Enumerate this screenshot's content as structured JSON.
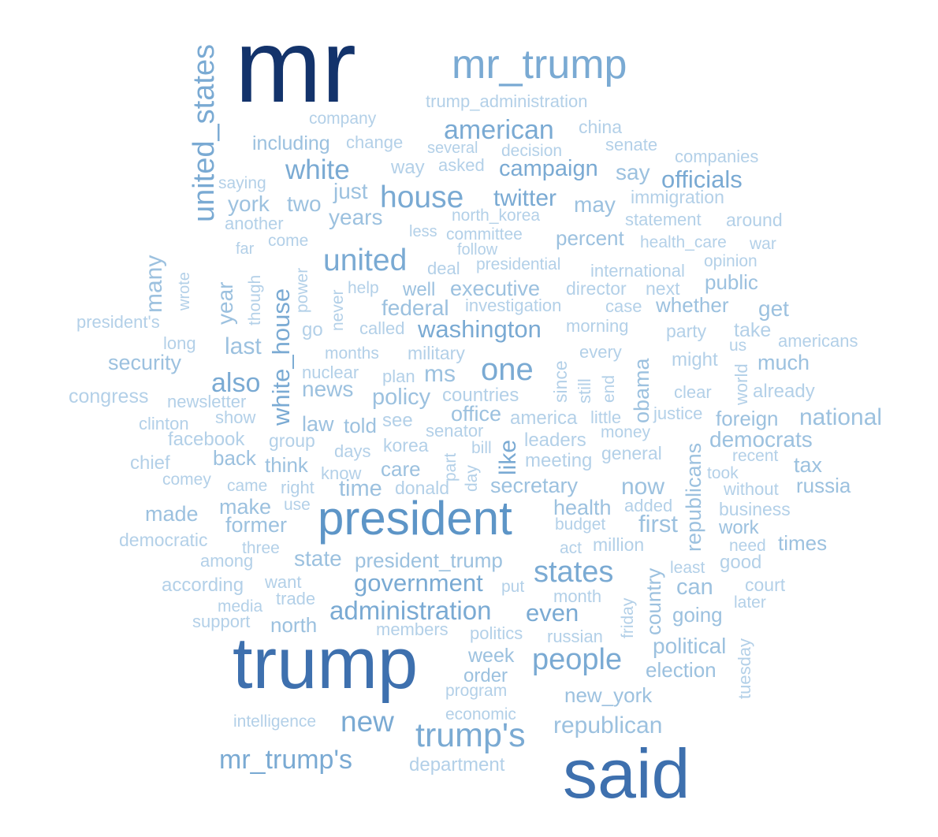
{
  "palette": {
    "darkest": "#13336b",
    "dark": "#3e70ae",
    "mid": "#5d95c7",
    "soft": "#7aaad3",
    "light": "#9cc1df",
    "lightest": "#b3d0e8"
  },
  "words": [
    {
      "text": "mr",
      "tone": "darkest"
    },
    {
      "text": "mr_trump",
      "tone": "soft"
    },
    {
      "text": "trump",
      "tone": "dark"
    },
    {
      "text": "said",
      "tone": "dark"
    },
    {
      "text": "president",
      "tone": "mid"
    },
    {
      "text": "trump_administration",
      "tone": "lightest"
    },
    {
      "text": "company",
      "tone": "lightest"
    },
    {
      "text": "american",
      "tone": "soft"
    },
    {
      "text": "china",
      "tone": "lightest"
    },
    {
      "text": "including",
      "tone": "light"
    },
    {
      "text": "change",
      "tone": "lightest"
    },
    {
      "text": "several",
      "tone": "lightest"
    },
    {
      "text": "decision",
      "tone": "lightest"
    },
    {
      "text": "senate",
      "tone": "lightest"
    },
    {
      "text": "companies",
      "tone": "lightest"
    },
    {
      "text": "white",
      "tone": "soft"
    },
    {
      "text": "way",
      "tone": "lightest"
    },
    {
      "text": "asked",
      "tone": "lightest"
    },
    {
      "text": "campaign",
      "tone": "soft"
    },
    {
      "text": "say",
      "tone": "light"
    },
    {
      "text": "officials",
      "tone": "soft"
    },
    {
      "text": "saying",
      "tone": "lightest"
    },
    {
      "text": "just",
      "tone": "light"
    },
    {
      "text": "house",
      "tone": "soft"
    },
    {
      "text": "twitter",
      "tone": "soft"
    },
    {
      "text": "immigration",
      "tone": "lightest"
    },
    {
      "text": "york",
      "tone": "light"
    },
    {
      "text": "two",
      "tone": "light"
    },
    {
      "text": "years",
      "tone": "light"
    },
    {
      "text": "may",
      "tone": "light"
    },
    {
      "text": "north_korea",
      "tone": "lightest"
    },
    {
      "text": "statement",
      "tone": "lightest"
    },
    {
      "text": "around",
      "tone": "lightest"
    },
    {
      "text": "another",
      "tone": "lightest"
    },
    {
      "text": "less",
      "tone": "lightest"
    },
    {
      "text": "committee",
      "tone": "lightest"
    },
    {
      "text": "percent",
      "tone": "light"
    },
    {
      "text": "health_care",
      "tone": "lightest"
    },
    {
      "text": "war",
      "tone": "lightest"
    },
    {
      "text": "far",
      "tone": "lightest"
    },
    {
      "text": "come",
      "tone": "lightest"
    },
    {
      "text": "follow",
      "tone": "lightest"
    },
    {
      "text": "opinion",
      "tone": "lightest"
    },
    {
      "text": "united",
      "tone": "soft"
    },
    {
      "text": "deal",
      "tone": "lightest"
    },
    {
      "text": "presidential",
      "tone": "lightest"
    },
    {
      "text": "international",
      "tone": "lightest"
    },
    {
      "text": "public",
      "tone": "light"
    },
    {
      "text": "help",
      "tone": "lightest"
    },
    {
      "text": "well",
      "tone": "light"
    },
    {
      "text": "executive",
      "tone": "light"
    },
    {
      "text": "director",
      "tone": "lightest"
    },
    {
      "text": "next",
      "tone": "lightest"
    },
    {
      "text": "investigation",
      "tone": "lightest"
    },
    {
      "text": "case",
      "tone": "lightest"
    },
    {
      "text": "whether",
      "tone": "light"
    },
    {
      "text": "get",
      "tone": "light"
    },
    {
      "text": "federal",
      "tone": "light"
    },
    {
      "text": "president's",
      "tone": "lightest"
    },
    {
      "text": "go",
      "tone": "lightest"
    },
    {
      "text": "called",
      "tone": "lightest"
    },
    {
      "text": "washington",
      "tone": "soft"
    },
    {
      "text": "morning",
      "tone": "lightest"
    },
    {
      "text": "party",
      "tone": "lightest"
    },
    {
      "text": "take",
      "tone": "lightest"
    },
    {
      "text": "long",
      "tone": "lightest"
    },
    {
      "text": "last",
      "tone": "light"
    },
    {
      "text": "months",
      "tone": "lightest"
    },
    {
      "text": "military",
      "tone": "lightest"
    },
    {
      "text": "every",
      "tone": "lightest"
    },
    {
      "text": "us",
      "tone": "lightest"
    },
    {
      "text": "americans",
      "tone": "lightest"
    },
    {
      "text": "security",
      "tone": "light"
    },
    {
      "text": "nuclear",
      "tone": "lightest"
    },
    {
      "text": "one",
      "tone": "soft"
    },
    {
      "text": "might",
      "tone": "lightest"
    },
    {
      "text": "much",
      "tone": "light"
    },
    {
      "text": "also",
      "tone": "soft"
    },
    {
      "text": "news",
      "tone": "light"
    },
    {
      "text": "plan",
      "tone": "lightest"
    },
    {
      "text": "ms",
      "tone": "light"
    },
    {
      "text": "congress",
      "tone": "lightest"
    },
    {
      "text": "newsletter",
      "tone": "lightest"
    },
    {
      "text": "policy",
      "tone": "light"
    },
    {
      "text": "countries",
      "tone": "lightest"
    },
    {
      "text": "clear",
      "tone": "lightest"
    },
    {
      "text": "already",
      "tone": "lightest"
    },
    {
      "text": "show",
      "tone": "lightest"
    },
    {
      "text": "office",
      "tone": "light"
    },
    {
      "text": "america",
      "tone": "lightest"
    },
    {
      "text": "little",
      "tone": "lightest"
    },
    {
      "text": "justice",
      "tone": "lightest"
    },
    {
      "text": "foreign",
      "tone": "light"
    },
    {
      "text": "national",
      "tone": "light"
    },
    {
      "text": "clinton",
      "tone": "lightest"
    },
    {
      "text": "law",
      "tone": "light"
    },
    {
      "text": "told",
      "tone": "light"
    },
    {
      "text": "see",
      "tone": "lightest"
    },
    {
      "text": "senator",
      "tone": "lightest"
    },
    {
      "text": "money",
      "tone": "lightest"
    },
    {
      "text": "facebook",
      "tone": "lightest"
    },
    {
      "text": "group",
      "tone": "lightest"
    },
    {
      "text": "bill",
      "tone": "lightest"
    },
    {
      "text": "leaders",
      "tone": "lightest"
    },
    {
      "text": "democrats",
      "tone": "light"
    },
    {
      "text": "days",
      "tone": "lightest"
    },
    {
      "text": "korea",
      "tone": "lightest"
    },
    {
      "text": "general",
      "tone": "lightest"
    },
    {
      "text": "recent",
      "tone": "lightest"
    },
    {
      "text": "back",
      "tone": "light"
    },
    {
      "text": "think",
      "tone": "light"
    },
    {
      "text": "meeting",
      "tone": "lightest"
    },
    {
      "text": "tax",
      "tone": "light"
    },
    {
      "text": "chief",
      "tone": "lightest"
    },
    {
      "text": "know",
      "tone": "lightest"
    },
    {
      "text": "care",
      "tone": "light"
    },
    {
      "text": "took",
      "tone": "lightest"
    },
    {
      "text": "comey",
      "tone": "lightest"
    },
    {
      "text": "without",
      "tone": "lightest"
    },
    {
      "text": "russia",
      "tone": "light"
    },
    {
      "text": "came",
      "tone": "lightest"
    },
    {
      "text": "right",
      "tone": "lightest"
    },
    {
      "text": "time",
      "tone": "light"
    },
    {
      "text": "donald",
      "tone": "lightest"
    },
    {
      "text": "secretary",
      "tone": "light"
    },
    {
      "text": "now",
      "tone": "light"
    },
    {
      "text": "make",
      "tone": "light"
    },
    {
      "text": "use",
      "tone": "lightest"
    },
    {
      "text": "health",
      "tone": "light"
    },
    {
      "text": "added",
      "tone": "lightest"
    },
    {
      "text": "business",
      "tone": "lightest"
    },
    {
      "text": "made",
      "tone": "light"
    },
    {
      "text": "former",
      "tone": "light"
    },
    {
      "text": "first",
      "tone": "light"
    },
    {
      "text": "budget",
      "tone": "lightest"
    },
    {
      "text": "work",
      "tone": "light"
    },
    {
      "text": "democratic",
      "tone": "lightest"
    },
    {
      "text": "three",
      "tone": "lightest"
    },
    {
      "text": "act",
      "tone": "lightest"
    },
    {
      "text": "million",
      "tone": "lightest"
    },
    {
      "text": "need",
      "tone": "lightest"
    },
    {
      "text": "times",
      "tone": "light"
    },
    {
      "text": "among",
      "tone": "lightest"
    },
    {
      "text": "state",
      "tone": "light"
    },
    {
      "text": "president_trump",
      "tone": "light"
    },
    {
      "text": "least",
      "tone": "lightest"
    },
    {
      "text": "good",
      "tone": "lightest"
    },
    {
      "text": "states",
      "tone": "soft"
    },
    {
      "text": "according",
      "tone": "lightest"
    },
    {
      "text": "want",
      "tone": "lightest"
    },
    {
      "text": "government",
      "tone": "soft"
    },
    {
      "text": "put",
      "tone": "lightest"
    },
    {
      "text": "can",
      "tone": "light"
    },
    {
      "text": "court",
      "tone": "lightest"
    },
    {
      "text": "media",
      "tone": "lightest"
    },
    {
      "text": "trade",
      "tone": "lightest"
    },
    {
      "text": "month",
      "tone": "lightest"
    },
    {
      "text": "later",
      "tone": "lightest"
    },
    {
      "text": "administration",
      "tone": "soft"
    },
    {
      "text": "even",
      "tone": "soft"
    },
    {
      "text": "going",
      "tone": "light"
    },
    {
      "text": "support",
      "tone": "lightest"
    },
    {
      "text": "north",
      "tone": "light"
    },
    {
      "text": "members",
      "tone": "lightest"
    },
    {
      "text": "politics",
      "tone": "lightest"
    },
    {
      "text": "russian",
      "tone": "lightest"
    },
    {
      "text": "political",
      "tone": "light"
    },
    {
      "text": "week",
      "tone": "light"
    },
    {
      "text": "people",
      "tone": "soft"
    },
    {
      "text": "election",
      "tone": "light"
    },
    {
      "text": "order",
      "tone": "light"
    },
    {
      "text": "program",
      "tone": "lightest"
    },
    {
      "text": "new_york",
      "tone": "light"
    },
    {
      "text": "intelligence",
      "tone": "lightest"
    },
    {
      "text": "new",
      "tone": "soft"
    },
    {
      "text": "economic",
      "tone": "lightest"
    },
    {
      "text": "republican",
      "tone": "light"
    },
    {
      "text": "trump's",
      "tone": "soft"
    },
    {
      "text": "mr_trump's",
      "tone": "soft"
    },
    {
      "text": "department",
      "tone": "lightest"
    },
    {
      "text": "united_states",
      "tone": "soft"
    },
    {
      "text": "many",
      "tone": "light"
    },
    {
      "text": "wrote",
      "tone": "lightest"
    },
    {
      "text": "year",
      "tone": "light"
    },
    {
      "text": "though",
      "tone": "lightest"
    },
    {
      "text": "white_house",
      "tone": "soft"
    },
    {
      "text": "power",
      "tone": "lightest"
    },
    {
      "text": "never",
      "tone": "lightest"
    },
    {
      "text": "since",
      "tone": "lightest"
    },
    {
      "text": "still",
      "tone": "lightest"
    },
    {
      "text": "end",
      "tone": "lightest"
    },
    {
      "text": "obama",
      "tone": "light"
    },
    {
      "text": "world",
      "tone": "lightest"
    },
    {
      "text": "like",
      "tone": "soft"
    },
    {
      "text": "part",
      "tone": "lightest"
    },
    {
      "text": "day",
      "tone": "lightest"
    },
    {
      "text": "republicans",
      "tone": "light"
    },
    {
      "text": "country",
      "tone": "light"
    },
    {
      "text": "friday",
      "tone": "lightest"
    },
    {
      "text": "tuesday",
      "tone": "lightest"
    }
  ]
}
